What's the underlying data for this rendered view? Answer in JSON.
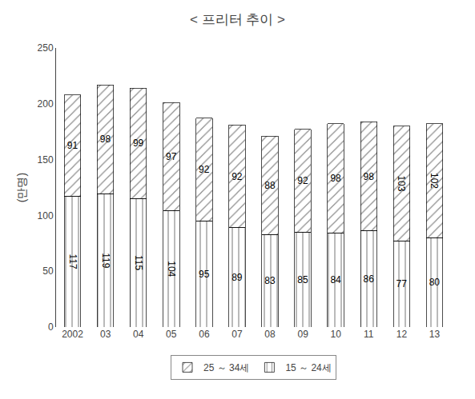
{
  "chart_data": {
    "type": "bar",
    "title": "< 프리터 추이 >",
    "ylabel": "(만명)",
    "categories": [
      "2002",
      "03",
      "04",
      "05",
      "06",
      "07",
      "08",
      "09",
      "10",
      "11",
      "12",
      "13"
    ],
    "series": [
      {
        "name": "15 ～ 24세",
        "color": "#8ECAE6",
        "values": [
          117,
          119,
          115,
          104,
          95,
          89,
          83,
          85,
          84,
          86,
          77,
          80
        ]
      },
      {
        "name": "25 ～ 34세",
        "color": "#F2A0B0",
        "values": [
          91,
          98,
          99,
          97,
          92,
          92,
          88,
          92,
          98,
          98,
          103,
          102
        ]
      }
    ],
    "stacked": true,
    "data_labels": true,
    "ylim": [
      0,
      250
    ],
    "yticks": [
      0,
      50,
      100,
      150,
      200,
      250
    ],
    "grid": false,
    "legend": "bottom"
  }
}
